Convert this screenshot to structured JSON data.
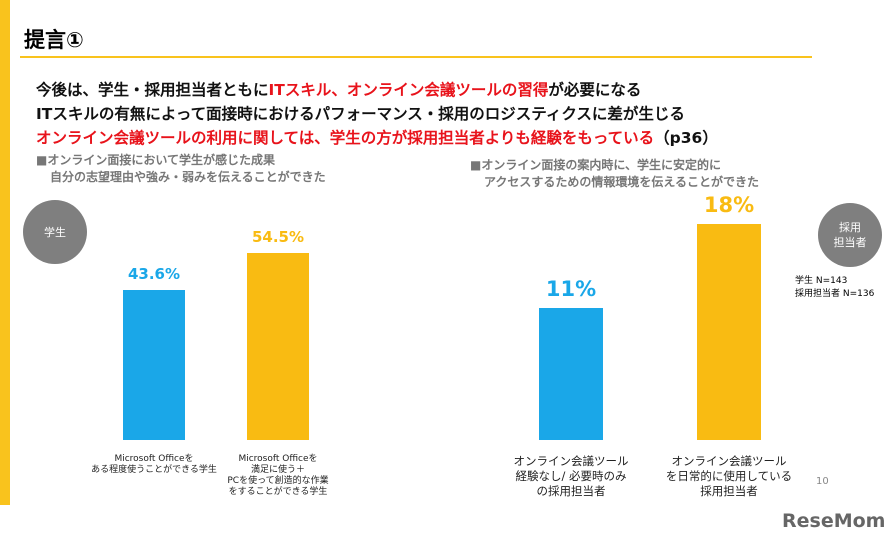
{
  "header": {
    "title": "提言①"
  },
  "lines": [
    [
      {
        "text": "今後は、学生・採用担当者ともに",
        "color": "#111111"
      },
      {
        "text": "ITスキル、オンライン会議ツールの習得",
        "color": "#e8131b"
      },
      {
        "text": "が必要になる",
        "color": "#111111"
      }
    ],
    [
      {
        "text": "ITスキルの有無によって面接時におけるパフォーマンス・採用のロジスティクスに差が生じる",
        "color": "#111111"
      }
    ],
    [
      {
        "text": "オンライン会議ツールの利用に関しては、学生の方が採用担当者よりも経験をもっている",
        "color": "#e8131b"
      },
      {
        "text": "（p36）",
        "color": "#111111"
      }
    ]
  ],
  "badges": [
    "学生",
    "採用\n担当者"
  ],
  "notes": [
    "学生 N=143",
    "採用担当者 N=136"
  ],
  "page_number": "10",
  "logo": "ReseMom",
  "chart_data": [
    {
      "type": "bar",
      "subtitle": [
        "■オンライン面接において学生が感じた成果",
        "自分の志望理由や強み・弱みを伝えることができた"
      ],
      "categories": [
        "Microsoft Officeを\nある程度使うことができる学生",
        "Microsoft Officeを\n満足に使う＋\nPCを使って創造的な作業\nをすることができる学生"
      ],
      "values": [
        43.6,
        54.5
      ],
      "value_labels": [
        "43.6%",
        "54.5%"
      ],
      "colors": [
        "#1aa7e8",
        "#f9bb12"
      ]
    },
    {
      "type": "bar",
      "subtitle": [
        "■オンライン面接の案内時に、学生に安定的に",
        "アクセスするための情報環境を伝えることができた"
      ],
      "categories": [
        "オンライン会議ツール\n経験なし/ 必要時のみ\nの採用担当者",
        "オンライン会議ツール\nを日常的に使用している\n採用担当者"
      ],
      "values": [
        11,
        18
      ],
      "value_labels": [
        "11%",
        "18%"
      ],
      "colors": [
        "#1aa7e8",
        "#f9bb12"
      ]
    }
  ]
}
